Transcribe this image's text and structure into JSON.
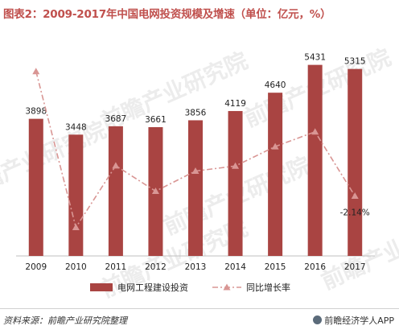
{
  "title": "图表2：2009-2017年中国电网投资规模及增速（单位：亿元，%）",
  "watermark": "前瞻产业研究院",
  "footer": {
    "source": "资料来源：前瞻产业研究院整理",
    "brand": "前瞻经济学人APP",
    "brand_icon": "qianzhan-logo-icon"
  },
  "chart_data": {
    "type": "bar+line",
    "categories": [
      "2009",
      "2010",
      "2011",
      "2012",
      "2013",
      "2014",
      "2015",
      "2016",
      "2017"
    ],
    "series": [
      {
        "name": "电网工程建设投资",
        "type": "bar",
        "color": "#a94442",
        "values": [
          3898,
          3448,
          3687,
          3661,
          3856,
          4119,
          4640,
          5431,
          5315
        ],
        "labels": [
          "3898",
          "3448",
          "3687",
          "3661",
          "3856",
          "4119",
          "4640",
          "5431",
          "5315"
        ]
      },
      {
        "name": "同比增长率",
        "type": "line",
        "color": "#d99694",
        "style": "dash-dot with triangle markers",
        "axis": "secondary (hidden)",
        "values": [
          35,
          -11.5,
          6.9,
          -0.7,
          5.3,
          6.8,
          12.6,
          17.0,
          -2.14
        ],
        "labels": [
          null,
          null,
          null,
          null,
          null,
          null,
          null,
          null,
          "-2.14%"
        ]
      }
    ],
    "y_primary_range": [
      0,
      6200
    ],
    "y_secondary_range": [
      -20,
      45
    ],
    "grid": false,
    "legend": "bottom"
  }
}
